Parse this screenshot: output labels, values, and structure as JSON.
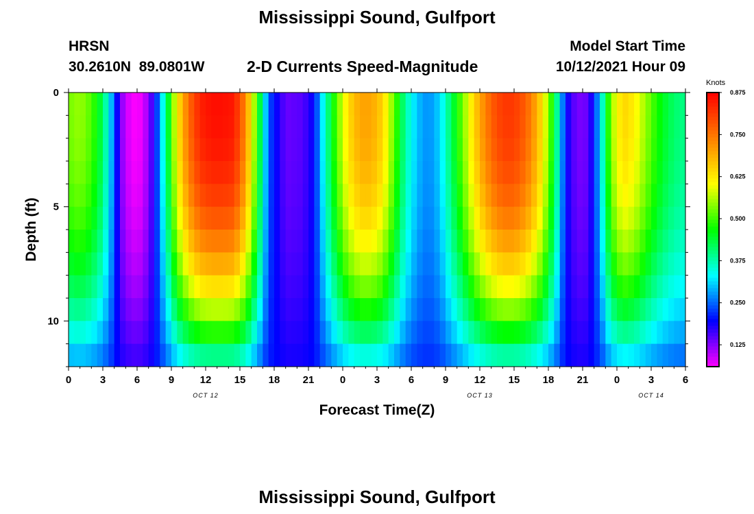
{
  "header": {
    "title": "Mississippi Sound, Gulfport",
    "station_id": "HRSN",
    "coordinates": "30.2610N  89.0801W",
    "subtitle": "2-D Currents Speed-Magnitude",
    "model_start_label": "Model Start Time",
    "model_start_value": "10/12/2021 Hour 09"
  },
  "footer": {
    "title": "Mississippi Sound, Gulfport"
  },
  "chart_data": {
    "type": "heatmap",
    "title": "2-D Currents Speed-Magnitude",
    "xlabel": "Forecast Time(Z)",
    "ylabel": "Depth (ft)",
    "x_range_hours": [
      0,
      54
    ],
    "y_range_ft": [
      0,
      12
    ],
    "y_inverted": true,
    "x_tick_labels": [
      "0",
      "3",
      "6",
      "9",
      "12",
      "15",
      "18",
      "21",
      "0",
      "3",
      "6",
      "9",
      "12",
      "15",
      "18",
      "21",
      "0",
      "3",
      "6"
    ],
    "date_labels": [
      {
        "text": "OCT 12",
        "hour": 12
      },
      {
        "text": "OCT 13",
        "hour": 36
      },
      {
        "text": "OCT 14",
        "hour": 51
      }
    ],
    "y_ticks": [
      0,
      5,
      10
    ],
    "colorbar": {
      "label": "Knots",
      "range": [
        0.06,
        0.875
      ],
      "ticks": [
        0.125,
        0.25,
        0.375,
        0.5,
        0.625,
        0.75,
        0.875
      ],
      "tick_labels": [
        "0.125",
        "0.250",
        "0.375",
        "0.500",
        "0.625",
        "0.750",
        "0.875"
      ],
      "colormap": [
        "#ff00ff",
        "#0000ff",
        "#00ffff",
        "#00ff00",
        "#ffff00",
        "#ff7f00",
        "#ff0000"
      ]
    },
    "depth_levels_ft": [
      0.5,
      1.5,
      2.5,
      3.5,
      4.5,
      5.5,
      6.5,
      7.5,
      8.5,
      9.5,
      10.5,
      11.5
    ],
    "surface_speed_knots": [
      {
        "t": 0,
        "v": 0.53
      },
      {
        "t": 1,
        "v": 0.55
      },
      {
        "t": 2,
        "v": 0.51
      },
      {
        "t": 3,
        "v": 0.42
      },
      {
        "t": 4,
        "v": 0.25
      },
      {
        "t": 4.5,
        "v": 0.13
      },
      {
        "t": 5.5,
        "v": 0.06
      },
      {
        "t": 6.5,
        "v": 0.07
      },
      {
        "t": 7.5,
        "v": 0.18
      },
      {
        "t": 8.5,
        "v": 0.39
      },
      {
        "t": 9.5,
        "v": 0.62
      },
      {
        "t": 10.5,
        "v": 0.76
      },
      {
        "t": 11.5,
        "v": 0.84
      },
      {
        "t": 12.5,
        "v": 0.86
      },
      {
        "t": 13.5,
        "v": 0.86
      },
      {
        "t": 14.5,
        "v": 0.85
      },
      {
        "t": 15.5,
        "v": 0.73
      },
      {
        "t": 16.5,
        "v": 0.5
      },
      {
        "t": 17.5,
        "v": 0.24
      },
      {
        "t": 19,
        "v": 0.14
      },
      {
        "t": 20.5,
        "v": 0.15
      },
      {
        "t": 21.5,
        "v": 0.2
      },
      {
        "t": 22.5,
        "v": 0.37
      },
      {
        "t": 23.5,
        "v": 0.52
      },
      {
        "t": 24.5,
        "v": 0.64
      },
      {
        "t": 25.5,
        "v": 0.7
      },
      {
        "t": 26.5,
        "v": 0.7
      },
      {
        "t": 27.5,
        "v": 0.65
      },
      {
        "t": 28.5,
        "v": 0.52
      },
      {
        "t": 29.5,
        "v": 0.38
      },
      {
        "t": 30.5,
        "v": 0.3
      },
      {
        "t": 31.5,
        "v": 0.27
      },
      {
        "t": 32.5,
        "v": 0.31
      },
      {
        "t": 33.5,
        "v": 0.42
      },
      {
        "t": 34.5,
        "v": 0.53
      },
      {
        "t": 35.5,
        "v": 0.65
      },
      {
        "t": 36.5,
        "v": 0.74
      },
      {
        "t": 37.5,
        "v": 0.8
      },
      {
        "t": 38.5,
        "v": 0.82
      },
      {
        "t": 39.5,
        "v": 0.8
      },
      {
        "t": 40.5,
        "v": 0.74
      },
      {
        "t": 41.5,
        "v": 0.63
      },
      {
        "t": 42.5,
        "v": 0.45
      },
      {
        "t": 43.5,
        "v": 0.2
      },
      {
        "t": 44.5,
        "v": 0.13
      },
      {
        "t": 45.5,
        "v": 0.14
      },
      {
        "t": 46.5,
        "v": 0.3
      },
      {
        "t": 47.5,
        "v": 0.55
      },
      {
        "t": 48.5,
        "v": 0.65
      },
      {
        "t": 49.5,
        "v": 0.62
      },
      {
        "t": 50.5,
        "v": 0.55
      },
      {
        "t": 51.5,
        "v": 0.48
      },
      {
        "t": 52.5,
        "v": 0.43
      },
      {
        "t": 53.5,
        "v": 0.4
      },
      {
        "t": 54,
        "v": 0.4
      }
    ],
    "depth_profile_note": "Strong flood/ebb cores are near the surface and weaken toward the bottom; slack-water minima (magenta/blue) extend through the water column."
  }
}
